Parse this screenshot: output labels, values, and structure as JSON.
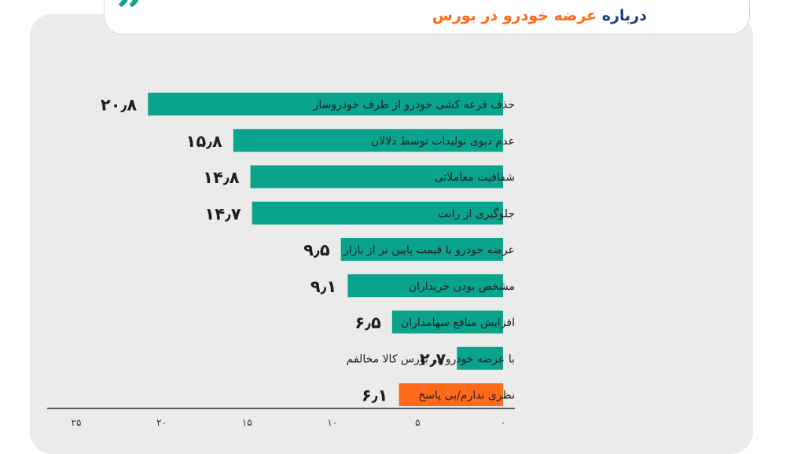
{
  "header": {
    "line2_prefix": "درباره ",
    "line2_highlight": "عرضه خودرو در بورس"
  },
  "colors": {
    "primary": "#0aa38c",
    "highlight": "#ff6a1a",
    "title": "#1b3a8c"
  },
  "icons": {
    "quote": "quote-icon"
  },
  "chart_data": {
    "type": "bar",
    "orientation": "horizontal",
    "direction": "rtl",
    "grid": false,
    "categories": [
      "حذف قرعه کشی خودرو از طرف خودروساز",
      "عدم دپوی تولیدات توسط دلالان",
      "شفافیت معاملاتی",
      "جلوگیری از رانت",
      "عرضه خودرو با قیمت پایین تر از بازار",
      "مشخص بودن خریداران",
      "افزایش منافع سهامداران",
      "با عرضه خودرو در بورس کالا مخالفم",
      "نظری ندارم/بی پاسخ"
    ],
    "values": [
      20.8,
      15.8,
      14.8,
      14.7,
      9.5,
      9.1,
      6.5,
      2.7,
      6.1
    ],
    "value_labels": [
      "۲۰٫۸",
      "۱۵٫۸",
      "۱۴٫۸",
      "۱۴٫۷",
      "۹٫۵",
      "۹٫۱",
      "۶٫۵",
      "۲٫۷",
      "۶٫۱"
    ],
    "bar_colors": [
      "#0aa38c",
      "#0aa38c",
      "#0aa38c",
      "#0aa38c",
      "#0aa38c",
      "#0aa38c",
      "#0aa38c",
      "#0aa38c",
      "#ff6a1a"
    ],
    "xlim": [
      0,
      25
    ],
    "xticks": [
      0,
      5,
      10,
      15,
      20,
      25
    ],
    "xtick_labels": [
      "۰",
      "۵",
      "۱۰",
      "۱۵",
      "۲۰",
      "۲۵"
    ]
  }
}
